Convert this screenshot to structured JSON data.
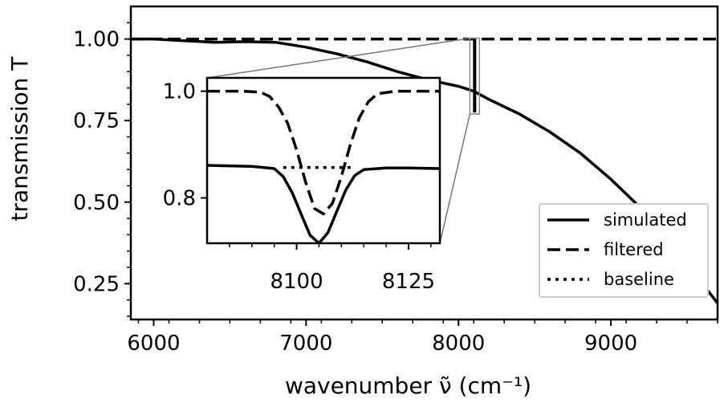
{
  "chart_data": {
    "type": "line",
    "title": "",
    "xlabel": "wavenumber ν̃ (cm⁻¹)",
    "ylabel": "transmission T",
    "xlim": [
      5850,
      9700
    ],
    "ylim": [
      0.14,
      1.1
    ],
    "x_ticks": [
      6000,
      7000,
      8000,
      9000
    ],
    "y_ticks": [
      0.25,
      0.5,
      0.75,
      1.0
    ],
    "y_tick_labels": [
      "0.25",
      "0.50",
      "0.75",
      "1.00"
    ],
    "grid": false,
    "legend_position": "bottom-right",
    "series": [
      {
        "name": "simulated",
        "style": "solid",
        "x": [
          5850,
          6000,
          6200,
          6400,
          6600,
          6800,
          7000,
          7200,
          7400,
          7600,
          7800,
          8000,
          8100,
          8200,
          8400,
          8600,
          8800,
          9000,
          9200,
          9400,
          9600,
          9700
        ],
        "y": [
          1.0,
          1.0,
          0.995,
          0.99,
          0.992,
          0.99,
          0.975,
          0.955,
          0.93,
          0.9,
          0.875,
          0.855,
          0.84,
          0.815,
          0.77,
          0.715,
          0.65,
          0.57,
          0.48,
          0.37,
          0.25,
          0.19
        ]
      },
      {
        "name": "filtered",
        "style": "dashed",
        "x": [
          5850,
          9700
        ],
        "y": [
          1.0,
          1.0
        ]
      }
    ],
    "legend_entries": [
      {
        "name": "simulated",
        "style": "solid"
      },
      {
        "name": "filtered",
        "style": "dashed"
      },
      {
        "name": "baseline",
        "style": "dotted"
      }
    ],
    "inset": {
      "xlim": [
        8080,
        8132
      ],
      "ylim": [
        0.715,
        1.025
      ],
      "x_ticks": [
        8100,
        8125
      ],
      "y_ticks": [
        0.8,
        1.0
      ],
      "y_tick_labels": [
        "0.8",
        "1.0"
      ],
      "series": [
        {
          "name": "simulated",
          "style": "solid",
          "x": [
            8080,
            8085,
            8090,
            8095,
            8097,
            8099,
            8101,
            8103,
            8105,
            8107,
            8109,
            8111,
            8113,
            8115,
            8120,
            8125,
            8132
          ],
          "y": [
            0.861,
            0.86,
            0.859,
            0.855,
            0.84,
            0.81,
            0.77,
            0.73,
            0.715,
            0.735,
            0.775,
            0.815,
            0.842,
            0.853,
            0.856,
            0.856,
            0.855
          ]
        },
        {
          "name": "filtered",
          "style": "dashed",
          "x": [
            8080,
            8088,
            8092,
            8094,
            8096,
            8098,
            8100,
            8102,
            8104,
            8106,
            8108,
            8110,
            8112,
            8114,
            8116,
            8118,
            8122,
            8132
          ],
          "y": [
            1.0,
            1.0,
            0.998,
            0.99,
            0.97,
            0.94,
            0.89,
            0.83,
            0.78,
            0.77,
            0.79,
            0.84,
            0.9,
            0.95,
            0.98,
            0.995,
            1.0,
            1.0
          ]
        },
        {
          "name": "baseline",
          "style": "dotted",
          "x": [
            8097,
            8113
          ],
          "y": [
            0.857,
            0.857
          ]
        }
      ]
    }
  }
}
